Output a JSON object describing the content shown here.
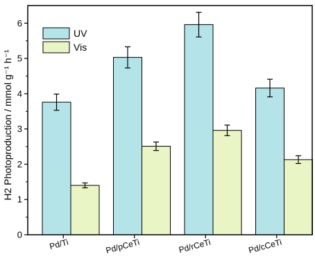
{
  "chart_data": {
    "type": "bar",
    "categories": [
      "Pd/Ti",
      "Pd/pCeTi",
      "Pd/rCeTi",
      "Pd/cCeTi"
    ],
    "series": [
      {
        "name": "UV",
        "values": [
          3.76,
          5.03,
          5.96,
          4.16
        ],
        "errors": [
          0.23,
          0.3,
          0.35,
          0.25
        ],
        "color": "#b4e3e8"
      },
      {
        "name": "Vis",
        "values": [
          1.4,
          2.51,
          2.96,
          2.13
        ],
        "errors": [
          0.07,
          0.12,
          0.15,
          0.11
        ],
        "color": "#eaf5c6"
      }
    ],
    "ylabel": "H2 Photoproduction / mmol g⁻¹ h⁻¹",
    "xlabel": "",
    "ylim": [
      0,
      6.5
    ],
    "yticks": [
      0,
      1,
      2,
      3,
      4,
      5,
      6
    ],
    "legend_position": "top-left",
    "grid": false
  }
}
